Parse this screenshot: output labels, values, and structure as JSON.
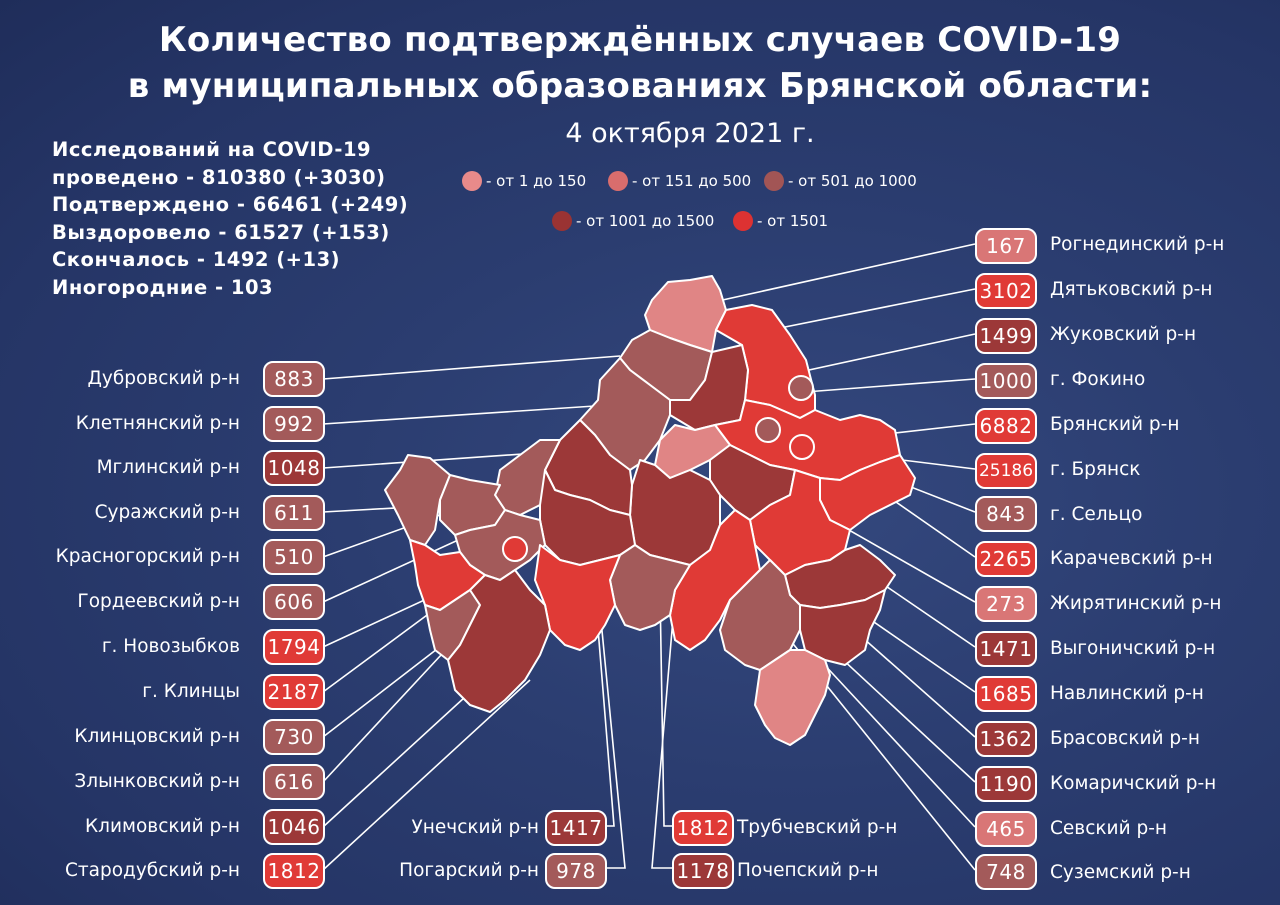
{
  "title": {
    "line1": "Количество подтверждённых случаев COVID-19",
    "line2": "в муниципальных образованиях Брянской области:"
  },
  "date": "4 октября 2021 г.",
  "stats": [
    "Исследований на COVID-19",
    "проведено - 810380 (+3030)",
    "Подтверждено - 66461 (+249)",
    "Выздоровело - 61527 (+153)",
    "Скончалось - 1492 (+13)",
    "Иногородние - 103"
  ],
  "legend": [
    {
      "label": "- от 1 до 150",
      "color": "#e88a8a"
    },
    {
      "label": "- от 151 до 500",
      "color": "#d96d6d"
    },
    {
      "label": "- от 501 до 1000",
      "color": "#a25555"
    },
    {
      "label": "- от 1001 до 1500",
      "color": "#9a3333"
    },
    {
      "label": "- от 1501",
      "color": "#dd3232"
    }
  ],
  "colors": {
    "c1": "#e08585",
    "c2": "#d97676",
    "c3": "#a35a5a",
    "c4": "#9c3838",
    "c5": "#e03a36"
  },
  "left_districts": [
    {
      "name": "Дубровский р-н",
      "value": "883",
      "cls": "c3"
    },
    {
      "name": "Клетнянский р-н",
      "value": "992",
      "cls": "c3"
    },
    {
      "name": "Мглинский р-н",
      "value": "1048",
      "cls": "c4"
    },
    {
      "name": "Суражский р-н",
      "value": "611",
      "cls": "c3"
    },
    {
      "name": "Красногорский р-н",
      "value": "510",
      "cls": "c3"
    },
    {
      "name": "Гордеевский р-н",
      "value": "606",
      "cls": "c3"
    },
    {
      "name": "г. Новозыбков",
      "value": "1794",
      "cls": "c5"
    },
    {
      "name": "г. Клинцы",
      "value": "2187",
      "cls": "c5"
    },
    {
      "name": "Клинцовский р-н",
      "value": "730",
      "cls": "c3"
    },
    {
      "name": "Злынковский р-н",
      "value": "616",
      "cls": "c3"
    },
    {
      "name": "Климовский  р-н",
      "value": "1046",
      "cls": "c4"
    },
    {
      "name": "Стародубский р-н",
      "value": "1812",
      "cls": "c5"
    }
  ],
  "right_districts": [
    {
      "name": "Рогнединский р-н",
      "value": "167",
      "cls": "c2"
    },
    {
      "name": "Дятьковский р-н",
      "value": "3102",
      "cls": "c5"
    },
    {
      "name": "Жуковский р-н",
      "value": "1499",
      "cls": "c4"
    },
    {
      "name": "г. Фокино",
      "value": "1000",
      "cls": "c3"
    },
    {
      "name": "Брянский р-н",
      "value": "6882",
      "cls": "c5"
    },
    {
      "name": "г. Брянск",
      "value": "25186",
      "cls": "c5"
    },
    {
      "name": "г. Сельцо",
      "value": "843",
      "cls": "c3"
    },
    {
      "name": "Карачевский р-н",
      "value": "2265",
      "cls": "c5"
    },
    {
      "name": "Жирятинский р-н",
      "value": "273",
      "cls": "c2"
    },
    {
      "name": "Выгоничский р-н",
      "value": "1471",
      "cls": "c4"
    },
    {
      "name": "Навлинский р-н",
      "value": "1685",
      "cls": "c5"
    },
    {
      "name": "Брасовский р-н",
      "value": "1362",
      "cls": "c4"
    },
    {
      "name": "Комаричский р-н",
      "value": "1190",
      "cls": "c4"
    },
    {
      "name": "Севский р-н",
      "value": "465",
      "cls": "c2"
    },
    {
      "name": "Суземский р-н",
      "value": "748",
      "cls": "c3"
    }
  ],
  "bottom_districts": [
    {
      "name": "Унечский р-н",
      "value": "1417",
      "cls": "c4"
    },
    {
      "name": "Погарский р-н",
      "value": "978",
      "cls": "c3"
    },
    {
      "name": "Трубчевский р-н",
      "value": "1812",
      "cls": "c5"
    },
    {
      "name": "Почепский р-н",
      "value": "1178",
      "cls": "c4"
    }
  ]
}
